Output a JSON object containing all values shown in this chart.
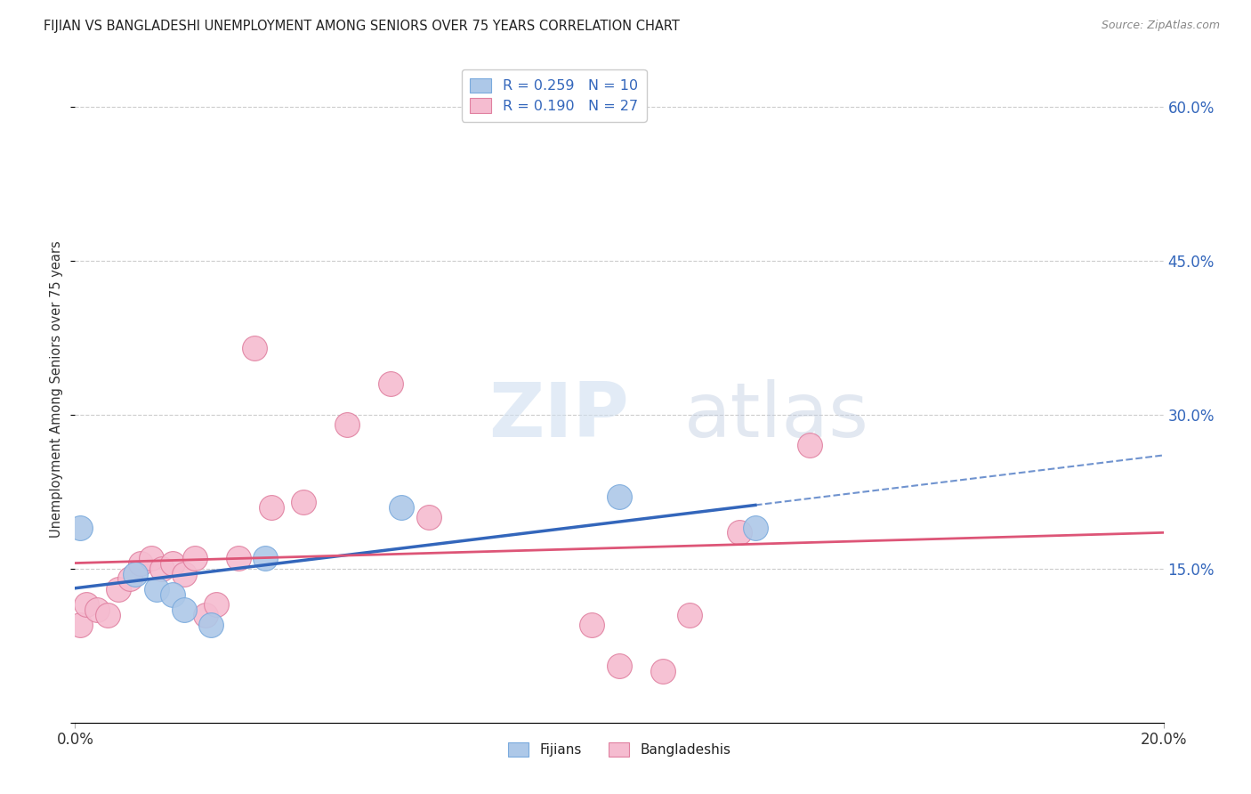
{
  "title": "FIJIAN VS BANGLADESHI UNEMPLOYMENT AMONG SENIORS OVER 75 YEARS CORRELATION CHART",
  "source": "Source: ZipAtlas.com",
  "ylabel": "Unemployment Among Seniors over 75 years",
  "xlim": [
    0.0,
    0.2
  ],
  "ylim": [
    0.0,
    0.65
  ],
  "yticks": [
    0.0,
    0.15,
    0.3,
    0.45,
    0.6
  ],
  "ytick_labels": [
    "",
    "15.0%",
    "30.0%",
    "45.0%",
    "60.0%"
  ],
  "fijian_color": "#adc8e8",
  "fijian_edge": "#7aaadd",
  "bangladeshi_color": "#f5bcd0",
  "bangladeshi_edge": "#e080a0",
  "fijian_R": 0.259,
  "fijian_N": 10,
  "bangladeshi_R": 0.19,
  "bangladeshi_N": 27,
  "fijian_line_color": "#3366bb",
  "bangladeshi_line_color": "#dd5577",
  "watermark_zip": "ZIP",
  "watermark_atlas": "atlas",
  "fijian_x": [
    0.001,
    0.011,
    0.015,
    0.018,
    0.02,
    0.025,
    0.035,
    0.06,
    0.1,
    0.125
  ],
  "fijian_y": [
    0.19,
    0.145,
    0.13,
    0.125,
    0.11,
    0.095,
    0.16,
    0.21,
    0.22,
    0.19
  ],
  "bangladeshi_x": [
    0.001,
    0.002,
    0.004,
    0.006,
    0.008,
    0.01,
    0.012,
    0.014,
    0.016,
    0.018,
    0.02,
    0.022,
    0.024,
    0.026,
    0.03,
    0.033,
    0.036,
    0.042,
    0.05,
    0.058,
    0.065,
    0.095,
    0.1,
    0.108,
    0.113,
    0.122,
    0.135
  ],
  "bangladeshi_y": [
    0.095,
    0.115,
    0.11,
    0.105,
    0.13,
    0.14,
    0.155,
    0.16,
    0.15,
    0.155,
    0.145,
    0.16,
    0.105,
    0.115,
    0.16,
    0.365,
    0.21,
    0.215,
    0.29,
    0.33,
    0.2,
    0.095,
    0.055,
    0.05,
    0.105,
    0.185,
    0.27
  ]
}
